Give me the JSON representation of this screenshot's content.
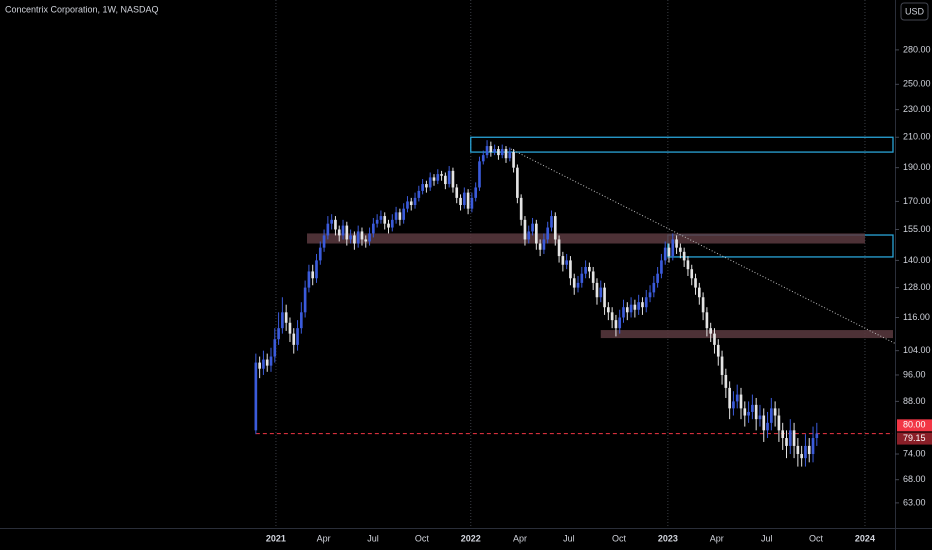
{
  "chart_data": {
    "type": "candlestick",
    "title": "Concentrix Corporation, 1W, NASDAQ",
    "currency": "USD",
    "log_scale": true,
    "up_color": "#3b5bdb",
    "down_color": "#e4e4e4",
    "ylim": [
      58,
      330
    ],
    "xlim": [
      -67.5,
      168.1
    ],
    "yticks": [
      {
        "value": 63,
        "label": "63.00"
      },
      {
        "value": 68,
        "label": "68.00"
      },
      {
        "value": 74,
        "label": "74.00"
      },
      {
        "value": 88,
        "label": "88.00"
      },
      {
        "value": 96,
        "label": "96.00"
      },
      {
        "value": 104,
        "label": "104.00"
      },
      {
        "value": 116,
        "label": "116.00"
      },
      {
        "value": 128,
        "label": "128.00"
      },
      {
        "value": 140,
        "label": "140.00"
      },
      {
        "value": 155,
        "label": "155.00"
      },
      {
        "value": 170,
        "label": "170.00"
      },
      {
        "value": 190,
        "label": "190.00"
      },
      {
        "value": 210,
        "label": "210.00"
      },
      {
        "value": 230,
        "label": "230.00"
      },
      {
        "value": 250,
        "label": "250.00"
      },
      {
        "value": 280,
        "label": "280.00"
      }
    ],
    "xticks": [
      {
        "value": 5.3,
        "label": "2021"
      },
      {
        "value": 17.9,
        "label": "Apr"
      },
      {
        "value": 30.9,
        "label": "Jul"
      },
      {
        "value": 43.8,
        "label": "Oct"
      },
      {
        "value": 56.7,
        "label": "2022"
      },
      {
        "value": 69.7,
        "label": "Apr"
      },
      {
        "value": 82.6,
        "label": "Jul"
      },
      {
        "value": 95.8,
        "label": "Oct"
      },
      {
        "value": 108.7,
        "label": "2023"
      },
      {
        "value": 121.6,
        "label": "Apr"
      },
      {
        "value": 134.8,
        "label": "Jul"
      },
      {
        "value": 147.8,
        "label": "Oct"
      },
      {
        "value": 160.7,
        "label": "2024"
      }
    ],
    "price_tags": [
      {
        "value": 80,
        "label": "80.00",
        "color": "#f23645"
      },
      {
        "value": 79.15,
        "color": "#8a1f28"
      }
    ],
    "price_line_color": "#f23645",
    "zones": [
      {
        "x": [
          56.7,
          168.1
        ],
        "y": [
          200,
          210
        ],
        "color": "#29a3d6",
        "style": "outline"
      },
      {
        "x": [
          108.7,
          168.1
        ],
        "y": [
          141.6,
          152.2
        ],
        "color": "#29a3d6",
        "style": "outline"
      },
      {
        "x": [
          13.5,
          160.7
        ],
        "y": [
          148,
          153
        ],
        "color": "#5a3a40",
        "style": "fill"
      },
      {
        "x": [
          91,
          168.1
        ],
        "y": [
          108.4,
          111.3
        ],
        "color": "#5a3a40",
        "style": "fill"
      }
    ],
    "trendline": {
      "x": [
        67.3,
        170
      ],
      "y": [
        202,
        105.6
      ],
      "color": "#bdbdbd"
    },
    "candles": [
      [
        80,
        103,
        79,
        100
      ],
      [
        100,
        102,
        95,
        98
      ],
      [
        98,
        104,
        96,
        101
      ],
      [
        101,
        103,
        97,
        99
      ],
      [
        99,
        105,
        97,
        102
      ],
      [
        102,
        112,
        100,
        108
      ],
      [
        108,
        118,
        106,
        112
      ],
      [
        112,
        124,
        110,
        118
      ],
      [
        118,
        121,
        111,
        114
      ],
      [
        114,
        116,
        107,
        110
      ],
      [
        110,
        112,
        103,
        106
      ],
      [
        106,
        115,
        104,
        112
      ],
      [
        112,
        122,
        110,
        118
      ],
      [
        118,
        131,
        116,
        128
      ],
      [
        128,
        138,
        126,
        135
      ],
      [
        135,
        138,
        129,
        132
      ],
      [
        132,
        143,
        130,
        140
      ],
      [
        140,
        149,
        138,
        146
      ],
      [
        146,
        155,
        144,
        152
      ],
      [
        152,
        162,
        150,
        158
      ],
      [
        158,
        163,
        155,
        160
      ],
      [
        160,
        162,
        152,
        155
      ],
      [
        155,
        157,
        149,
        152
      ],
      [
        152,
        160,
        150,
        157
      ],
      [
        157,
        159,
        147,
        150
      ],
      [
        150,
        155,
        148,
        152
      ],
      [
        152,
        154,
        145,
        148
      ],
      [
        148,
        157,
        146,
        154
      ],
      [
        154,
        156,
        147,
        150
      ],
      [
        150,
        152,
        146,
        149
      ],
      [
        149,
        156,
        147,
        153
      ],
      [
        153,
        161,
        151,
        158
      ],
      [
        158,
        163,
        156,
        160
      ],
      [
        160,
        165,
        158,
        162
      ],
      [
        162,
        164,
        155,
        158
      ],
      [
        158,
        160,
        153,
        156
      ],
      [
        156,
        163,
        154,
        160
      ],
      [
        160,
        167,
        158,
        164
      ],
      [
        164,
        166,
        157,
        160
      ],
      [
        160,
        169,
        158,
        166
      ],
      [
        166,
        173,
        164,
        170
      ],
      [
        170,
        172,
        165,
        168
      ],
      [
        168,
        175,
        166,
        172
      ],
      [
        172,
        179,
        170,
        176
      ],
      [
        176,
        183,
        174,
        180
      ],
      [
        180,
        182,
        175,
        178
      ],
      [
        178,
        187,
        176,
        184
      ],
      [
        184,
        186,
        179,
        182
      ],
      [
        182,
        189,
        180,
        186
      ],
      [
        186,
        188,
        182,
        185
      ],
      [
        185,
        187,
        177,
        180
      ],
      [
        180,
        191,
        178,
        188
      ],
      [
        188,
        190,
        175,
        178
      ],
      [
        178,
        180,
        169,
        172
      ],
      [
        172,
        174,
        165,
        168
      ],
      [
        168,
        178,
        166,
        175
      ],
      [
        175,
        177,
        163,
        166
      ],
      [
        166,
        175,
        164,
        172
      ],
      [
        172,
        181,
        170,
        178
      ],
      [
        178,
        197,
        176,
        194
      ],
      [
        194,
        201,
        192,
        198
      ],
      [
        198,
        208,
        196,
        204
      ],
      [
        204,
        207,
        197,
        200
      ],
      [
        200,
        205,
        198,
        202
      ],
      [
        202,
        204,
        195,
        198
      ],
      [
        198,
        205,
        196,
        202
      ],
      [
        202,
        204,
        193,
        196
      ],
      [
        196,
        203,
        194,
        200
      ],
      [
        200,
        202,
        187,
        190
      ],
      [
        190,
        192,
        169,
        172
      ],
      [
        172,
        174,
        157,
        160
      ],
      [
        160,
        162,
        147,
        150
      ],
      [
        150,
        157,
        148,
        154
      ],
      [
        154,
        161,
        152,
        158
      ],
      [
        158,
        160,
        145,
        148
      ],
      [
        148,
        150,
        142,
        145
      ],
      [
        145,
        153,
        143,
        150
      ],
      [
        150,
        159,
        148,
        156
      ],
      [
        156,
        165,
        154,
        162
      ],
      [
        162,
        164,
        147,
        150
      ],
      [
        150,
        152,
        139,
        142
      ],
      [
        142,
        144,
        135,
        138
      ],
      [
        138,
        143,
        136,
        140
      ],
      [
        140,
        142,
        129,
        132
      ],
      [
        132,
        134,
        125,
        128
      ],
      [
        128,
        133,
        126,
        130
      ],
      [
        130,
        137,
        128,
        134
      ],
      [
        134,
        140,
        132,
        137
      ],
      [
        137,
        139,
        132,
        135
      ],
      [
        135,
        137,
        127,
        130
      ],
      [
        130,
        132,
        121,
        124
      ],
      [
        124,
        131,
        122,
        128
      ],
      [
        128,
        130,
        117,
        120
      ],
      [
        120,
        122,
        115,
        118
      ],
      [
        118,
        120,
        112,
        115
      ],
      [
        115,
        117,
        109,
        112
      ],
      [
        112,
        119,
        110,
        116
      ],
      [
        116,
        123,
        114,
        120
      ],
      [
        120,
        122,
        115,
        118
      ],
      [
        118,
        124,
        116,
        121
      ],
      [
        121,
        123,
        116,
        119
      ],
      [
        119,
        125,
        117,
        122
      ],
      [
        122,
        124,
        117,
        120
      ],
      [
        120,
        127,
        118,
        124
      ],
      [
        124,
        129,
        122,
        126
      ],
      [
        126,
        133,
        124,
        130
      ],
      [
        130,
        137,
        128,
        134
      ],
      [
        134,
        143,
        132,
        140
      ],
      [
        140,
        149,
        138,
        146
      ],
      [
        146,
        148,
        139,
        142
      ],
      [
        142,
        153,
        140,
        150
      ],
      [
        150,
        152,
        143,
        146
      ],
      [
        146,
        148,
        141,
        144
      ],
      [
        144,
        146,
        137,
        140
      ],
      [
        140,
        142,
        133,
        136
      ],
      [
        136,
        138,
        129,
        132
      ],
      [
        132,
        134,
        125,
        128
      ],
      [
        128,
        130,
        121,
        124
      ],
      [
        124,
        126,
        115,
        118
      ],
      [
        118,
        120,
        109,
        112
      ],
      [
        112,
        114,
        107,
        110
      ],
      [
        110,
        112,
        103,
        106
      ],
      [
        106,
        108,
        99,
        102
      ],
      [
        102,
        104,
        93,
        96
      ],
      [
        96,
        98,
        89,
        92
      ],
      [
        92,
        94,
        83,
        86
      ],
      [
        86,
        91,
        84,
        88
      ],
      [
        88,
        93,
        86,
        90
      ],
      [
        90,
        92,
        83,
        86
      ],
      [
        86,
        88,
        81,
        84
      ],
      [
        84,
        88,
        82,
        85
      ],
      [
        85,
        90,
        83,
        87
      ],
      [
        87,
        89,
        80,
        83
      ],
      [
        83,
        87,
        81,
        84
      ],
      [
        84,
        86,
        77,
        80
      ],
      [
        80,
        85,
        78,
        82
      ],
      [
        82,
        89,
        80,
        86
      ],
      [
        86,
        88,
        81,
        84
      ],
      [
        84,
        86,
        77,
        80
      ],
      [
        80,
        82,
        75,
        78
      ],
      [
        78,
        80,
        73,
        76
      ],
      [
        76,
        83,
        74,
        80
      ],
      [
        80,
        82,
        73,
        76
      ],
      [
        76,
        78,
        71,
        74
      ],
      [
        74,
        76,
        71,
        73
      ],
      [
        73,
        79,
        71,
        76
      ],
      [
        76,
        78,
        72,
        74
      ],
      [
        74,
        81,
        72,
        78
      ],
      [
        78,
        82,
        76,
        79.15
      ]
    ]
  }
}
